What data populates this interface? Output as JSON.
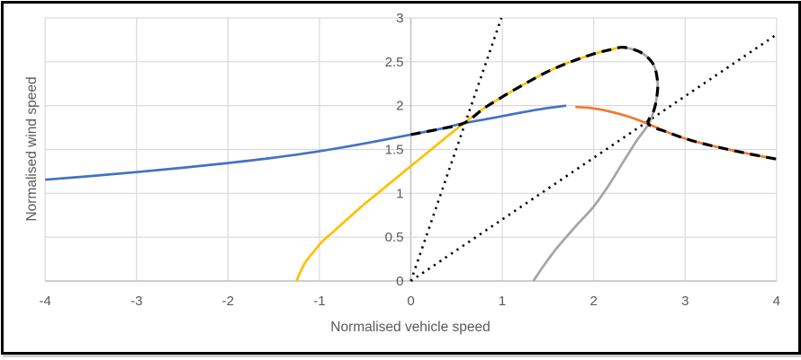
{
  "chart_data": {
    "type": "line",
    "title": "",
    "xlabel": "Normalised vehicle speed",
    "ylabel": "Normalised wind speed",
    "xlim": [
      -4,
      4
    ],
    "ylim": [
      0,
      3
    ],
    "x_ticks": [
      -4,
      -3,
      -2,
      -1,
      0,
      1,
      2,
      3,
      4
    ],
    "y_ticks": [
      0,
      0.5,
      1,
      1.5,
      2,
      2.5,
      3
    ],
    "grid": true,
    "grid_color": "#d9d9d9",
    "axis_color": "#bfbfbf",
    "tick_color": "#595959",
    "title_color": "#595959",
    "legend": "none",
    "series": [
      {
        "name": "dotted-reference-line-slope-3",
        "color": "#000000",
        "style": "dotted",
        "width": 2.6,
        "dash": "2.3 5.4",
        "points": [
          [
            0,
            0
          ],
          [
            0.99,
            3.0
          ]
        ]
      },
      {
        "name": "dotted-reference-line-slope-0.7",
        "color": "#000000",
        "style": "dotted",
        "width": 2.6,
        "dash": "2.3 5.4",
        "points": [
          [
            0,
            0
          ],
          [
            4.0,
            2.81
          ]
        ]
      },
      {
        "name": "blue-curve",
        "color": "#4472c4",
        "style": "solid",
        "width": 2.7,
        "points": [
          [
            -4,
            1.155
          ],
          [
            -3.5,
            1.197
          ],
          [
            -3,
            1.242
          ],
          [
            -2.5,
            1.291
          ],
          [
            -2,
            1.345
          ],
          [
            -1.5,
            1.407
          ],
          [
            -1,
            1.48
          ],
          [
            -0.5,
            1.57
          ],
          [
            0,
            1.67
          ],
          [
            0.3,
            1.73
          ],
          [
            0.58,
            1.8
          ],
          [
            0.9,
            1.86
          ],
          [
            1.2,
            1.92
          ],
          [
            1.45,
            1.965
          ],
          [
            1.7,
            2.0
          ]
        ]
      },
      {
        "name": "yellow-curve",
        "color": "#ffc000",
        "style": "solid",
        "width": 2.7,
        "points": [
          [
            -1.25,
            0
          ],
          [
            -1.21,
            0.1
          ],
          [
            -1.15,
            0.22
          ],
          [
            -1.05,
            0.35
          ],
          [
            -0.95,
            0.47
          ],
          [
            -0.85,
            0.56
          ],
          [
            -0.7,
            0.7
          ],
          [
            -0.55,
            0.84
          ],
          [
            -0.4,
            0.97
          ],
          [
            -0.2,
            1.14
          ],
          [
            0,
            1.31
          ],
          [
            0.2,
            1.48
          ],
          [
            0.4,
            1.65
          ],
          [
            0.58,
            1.8
          ],
          [
            0.8,
            1.97
          ],
          [
            1.0,
            2.1
          ],
          [
            1.25,
            2.25
          ],
          [
            1.5,
            2.39
          ],
          [
            1.75,
            2.5
          ],
          [
            2.0,
            2.59
          ],
          [
            2.15,
            2.63
          ],
          [
            2.3,
            2.665
          ]
        ]
      },
      {
        "name": "gray-curve",
        "color": "#a5a5a5",
        "style": "solid",
        "width": 2.7,
        "points": [
          [
            1.34,
            0
          ],
          [
            1.45,
            0.17
          ],
          [
            1.6,
            0.38
          ],
          [
            1.8,
            0.62
          ],
          [
            2.0,
            0.85
          ],
          [
            2.17,
            1.1
          ],
          [
            2.33,
            1.37
          ],
          [
            2.47,
            1.6
          ],
          [
            2.6,
            1.79
          ],
          [
            2.66,
            1.95
          ],
          [
            2.69,
            2.1
          ],
          [
            2.7,
            2.25
          ],
          [
            2.67,
            2.43
          ],
          [
            2.6,
            2.54
          ],
          [
            2.5,
            2.615
          ],
          [
            2.4,
            2.65
          ],
          [
            2.3,
            2.665
          ]
        ]
      },
      {
        "name": "orange-curve",
        "color": "#ed7d31",
        "style": "solid",
        "width": 2.7,
        "points": [
          [
            1.8,
            1.985
          ],
          [
            1.95,
            1.975
          ],
          [
            2.1,
            1.95
          ],
          [
            2.3,
            1.9
          ],
          [
            2.45,
            1.85
          ],
          [
            2.6,
            1.79
          ],
          [
            2.8,
            1.7
          ],
          [
            3.0,
            1.625
          ],
          [
            3.2,
            1.565
          ],
          [
            3.45,
            1.505
          ],
          [
            3.7,
            1.45
          ],
          [
            4.0,
            1.39
          ]
        ]
      },
      {
        "name": "black-dashed-envelope",
        "color": "#000000",
        "style": "dashed",
        "width": 3.2,
        "dash": "11 7",
        "points": [
          [
            0,
            1.67
          ],
          [
            0.3,
            1.73
          ],
          [
            0.58,
            1.8
          ],
          [
            0.8,
            1.97
          ],
          [
            1.0,
            2.1
          ],
          [
            1.25,
            2.25
          ],
          [
            1.5,
            2.39
          ],
          [
            1.75,
            2.5
          ],
          [
            2.0,
            2.59
          ],
          [
            2.15,
            2.63
          ],
          [
            2.3,
            2.665
          ],
          [
            2.4,
            2.65
          ],
          [
            2.5,
            2.615
          ],
          [
            2.6,
            2.54
          ],
          [
            2.67,
            2.43
          ],
          [
            2.7,
            2.25
          ],
          [
            2.69,
            2.1
          ],
          [
            2.66,
            1.95
          ],
          [
            2.6,
            1.79
          ],
          [
            2.8,
            1.7
          ],
          [
            3.0,
            1.625
          ],
          [
            3.2,
            1.565
          ],
          [
            3.45,
            1.505
          ],
          [
            3.7,
            1.45
          ],
          [
            4.0,
            1.39
          ]
        ]
      }
    ]
  }
}
